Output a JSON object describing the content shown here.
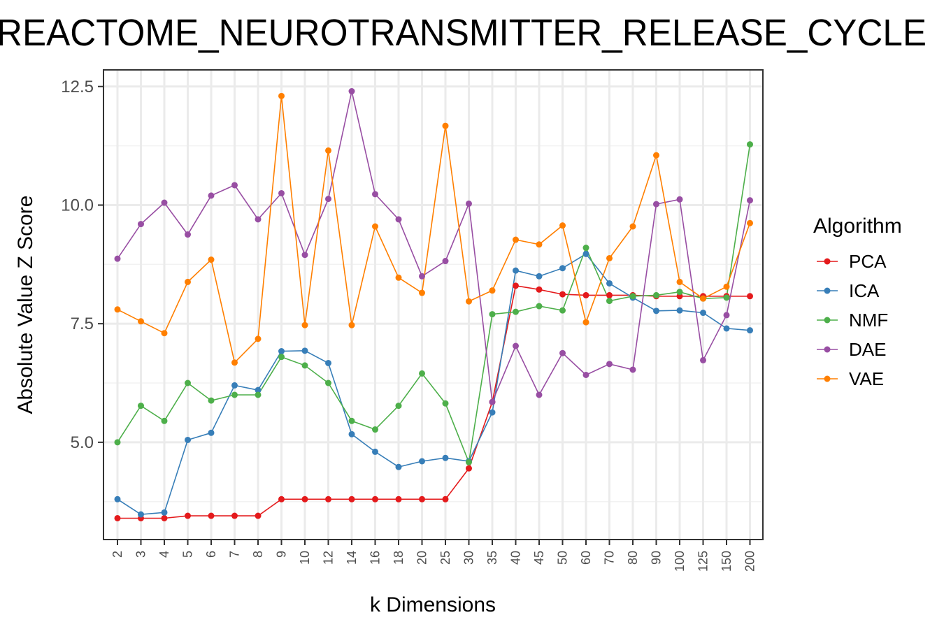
{
  "chart_data": {
    "type": "line",
    "title": "REACTOME_NEUROTRANSMITTER_RELEASE_CYCLE",
    "xlabel": "k Dimensions",
    "ylabel": "Absolute Value Z Score",
    "categories": [
      "2",
      "3",
      "4",
      "5",
      "6",
      "7",
      "8",
      "9",
      "10",
      "12",
      "14",
      "16",
      "18",
      "20",
      "25",
      "30",
      "35",
      "40",
      "45",
      "50",
      "60",
      "70",
      "80",
      "90",
      "100",
      "125",
      "150",
      "200"
    ],
    "ylim": [
      2.95,
      12.85
    ],
    "yticks": [
      5.0,
      7.5,
      10.0,
      12.5
    ],
    "ytick_labels": [
      "5.0",
      "7.5",
      "10.0",
      "12.5"
    ],
    "grid": true,
    "legend": {
      "title": "Algorithm",
      "position": "right"
    },
    "series": [
      {
        "name": "PCA",
        "color": "#e41a1c",
        "values": [
          3.4,
          3.4,
          3.4,
          3.45,
          3.45,
          3.45,
          3.45,
          3.8,
          3.8,
          3.8,
          3.8,
          3.8,
          3.8,
          3.8,
          3.8,
          4.45,
          5.85,
          8.3,
          8.22,
          8.12,
          8.1,
          8.1,
          8.1,
          8.08,
          8.08,
          8.08,
          8.08,
          8.08
        ]
      },
      {
        "name": "ICA",
        "color": "#377eb8",
        "values": [
          3.8,
          3.48,
          3.52,
          5.05,
          5.2,
          6.2,
          6.1,
          6.92,
          6.93,
          6.67,
          5.17,
          4.8,
          4.48,
          4.6,
          4.67,
          4.6,
          5.63,
          8.62,
          8.5,
          8.67,
          8.97,
          8.35,
          8.05,
          7.77,
          7.78,
          7.73,
          7.4,
          7.36
        ]
      },
      {
        "name": "NMF",
        "color": "#4daf4a",
        "values": [
          5.0,
          5.77,
          5.45,
          6.25,
          5.88,
          6.0,
          6.0,
          6.8,
          6.62,
          6.25,
          5.45,
          5.27,
          5.77,
          6.45,
          5.82,
          4.58,
          7.7,
          7.75,
          7.87,
          7.78,
          9.1,
          7.98,
          8.08,
          8.1,
          8.17,
          8.03,
          8.05,
          11.28
        ]
      },
      {
        "name": "DAE",
        "color": "#984ea3",
        "values": [
          8.87,
          9.6,
          10.05,
          9.38,
          10.2,
          10.42,
          9.7,
          10.25,
          8.95,
          10.13,
          12.4,
          10.23,
          9.7,
          8.5,
          8.82,
          10.03,
          5.85,
          7.03,
          6.0,
          6.88,
          6.42,
          6.65,
          6.53,
          10.02,
          10.12,
          6.73,
          7.68,
          10.1
        ]
      },
      {
        "name": "VAE",
        "color": "#ff7f00",
        "values": [
          7.8,
          7.55,
          7.3,
          8.38,
          8.85,
          6.68,
          7.18,
          12.3,
          7.47,
          11.15,
          7.47,
          9.55,
          8.47,
          8.15,
          11.67,
          7.97,
          8.2,
          9.27,
          9.17,
          9.57,
          7.53,
          8.88,
          9.55,
          11.05,
          8.38,
          8.03,
          8.28,
          9.62
        ]
      }
    ]
  }
}
